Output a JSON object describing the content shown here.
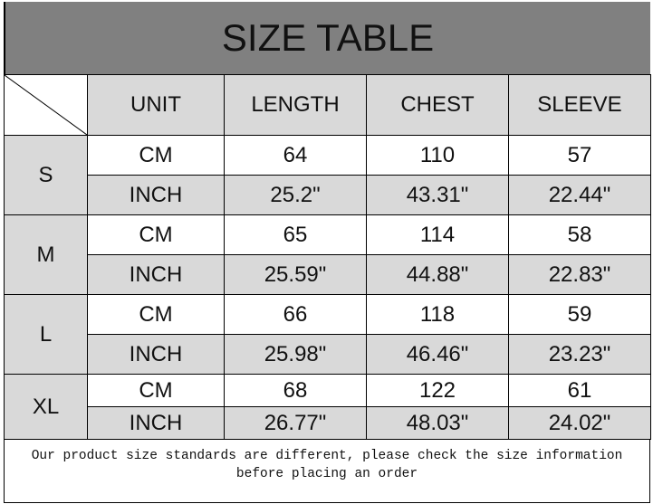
{
  "title": "SIZE TABLE",
  "headers": [
    "UNIT",
    "LENGTH",
    "CHEST",
    "SLEEVE"
  ],
  "sizes": [
    {
      "size": "S",
      "rows": [
        [
          "CM",
          "64",
          "110",
          "57"
        ],
        [
          "INCH",
          "25.2\"",
          "43.31\"",
          "22.44\""
        ]
      ]
    },
    {
      "size": "M",
      "rows": [
        [
          "CM",
          "65",
          "114",
          "58"
        ],
        [
          "INCH",
          "25.59\"",
          "44.88\"",
          "22.83\""
        ]
      ]
    },
    {
      "size": "L",
      "rows": [
        [
          "CM",
          "66",
          "118",
          "59"
        ],
        [
          "INCH",
          "25.98\"",
          "46.46\"",
          "23.23\""
        ]
      ]
    },
    {
      "size": "XL",
      "rows": [
        [
          "CM",
          "68",
          "122",
          "61"
        ],
        [
          "INCH",
          "26.77\"",
          "48.03\"",
          "24.02\""
        ]
      ]
    }
  ],
  "footer_note": "Our product size standards are different, please check the size information before placing an order",
  "colors": {
    "title_bg": "#808080",
    "cell_gray": "#d9d9d9"
  }
}
